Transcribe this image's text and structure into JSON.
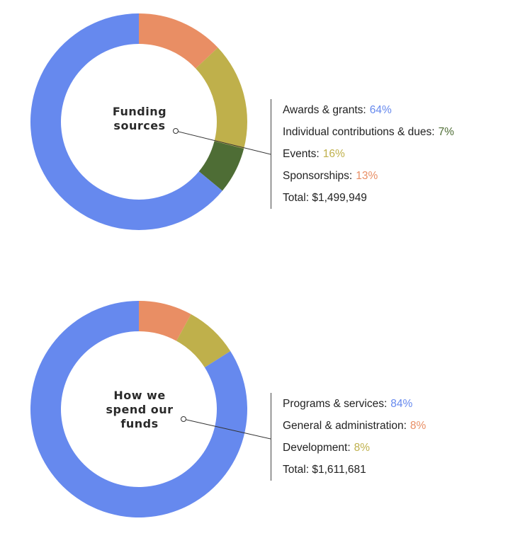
{
  "colors": {
    "blue": "#6689ee",
    "orange": "#e98e64",
    "olive": "#bfb04b",
    "green": "#4e6d35"
  },
  "chart_data": [
    {
      "type": "pie",
      "title": "Funding sources",
      "slices": [
        {
          "label": "Awards & grants",
          "value": 64,
          "display": "64%",
          "color": "#6689ee"
        },
        {
          "label": "Individual contributions & dues",
          "value": 7,
          "display": "7%",
          "color": "#4e6d35"
        },
        {
          "label": "Events",
          "value": 16,
          "display": "16%",
          "color": "#bfb04b"
        },
        {
          "label": "Sponsorships",
          "value": 13,
          "display": "13%",
          "color": "#e98e64"
        }
      ],
      "draw_order": [
        3,
        2,
        1,
        0
      ],
      "total_text": "Total: $1,499,949"
    },
    {
      "type": "pie",
      "title": "How we spend our funds",
      "slices": [
        {
          "label": "Programs & services",
          "value": 84,
          "display": "84%",
          "color": "#6689ee"
        },
        {
          "label": "General & administration",
          "value": 8,
          "display": "8%",
          "color": "#e98e64"
        },
        {
          "label": "Development",
          "value": 8,
          "display": "8%",
          "color": "#bfb04b"
        }
      ],
      "draw_order": [
        1,
        2,
        0
      ],
      "total_text": "Total: $1,611,681"
    }
  ]
}
